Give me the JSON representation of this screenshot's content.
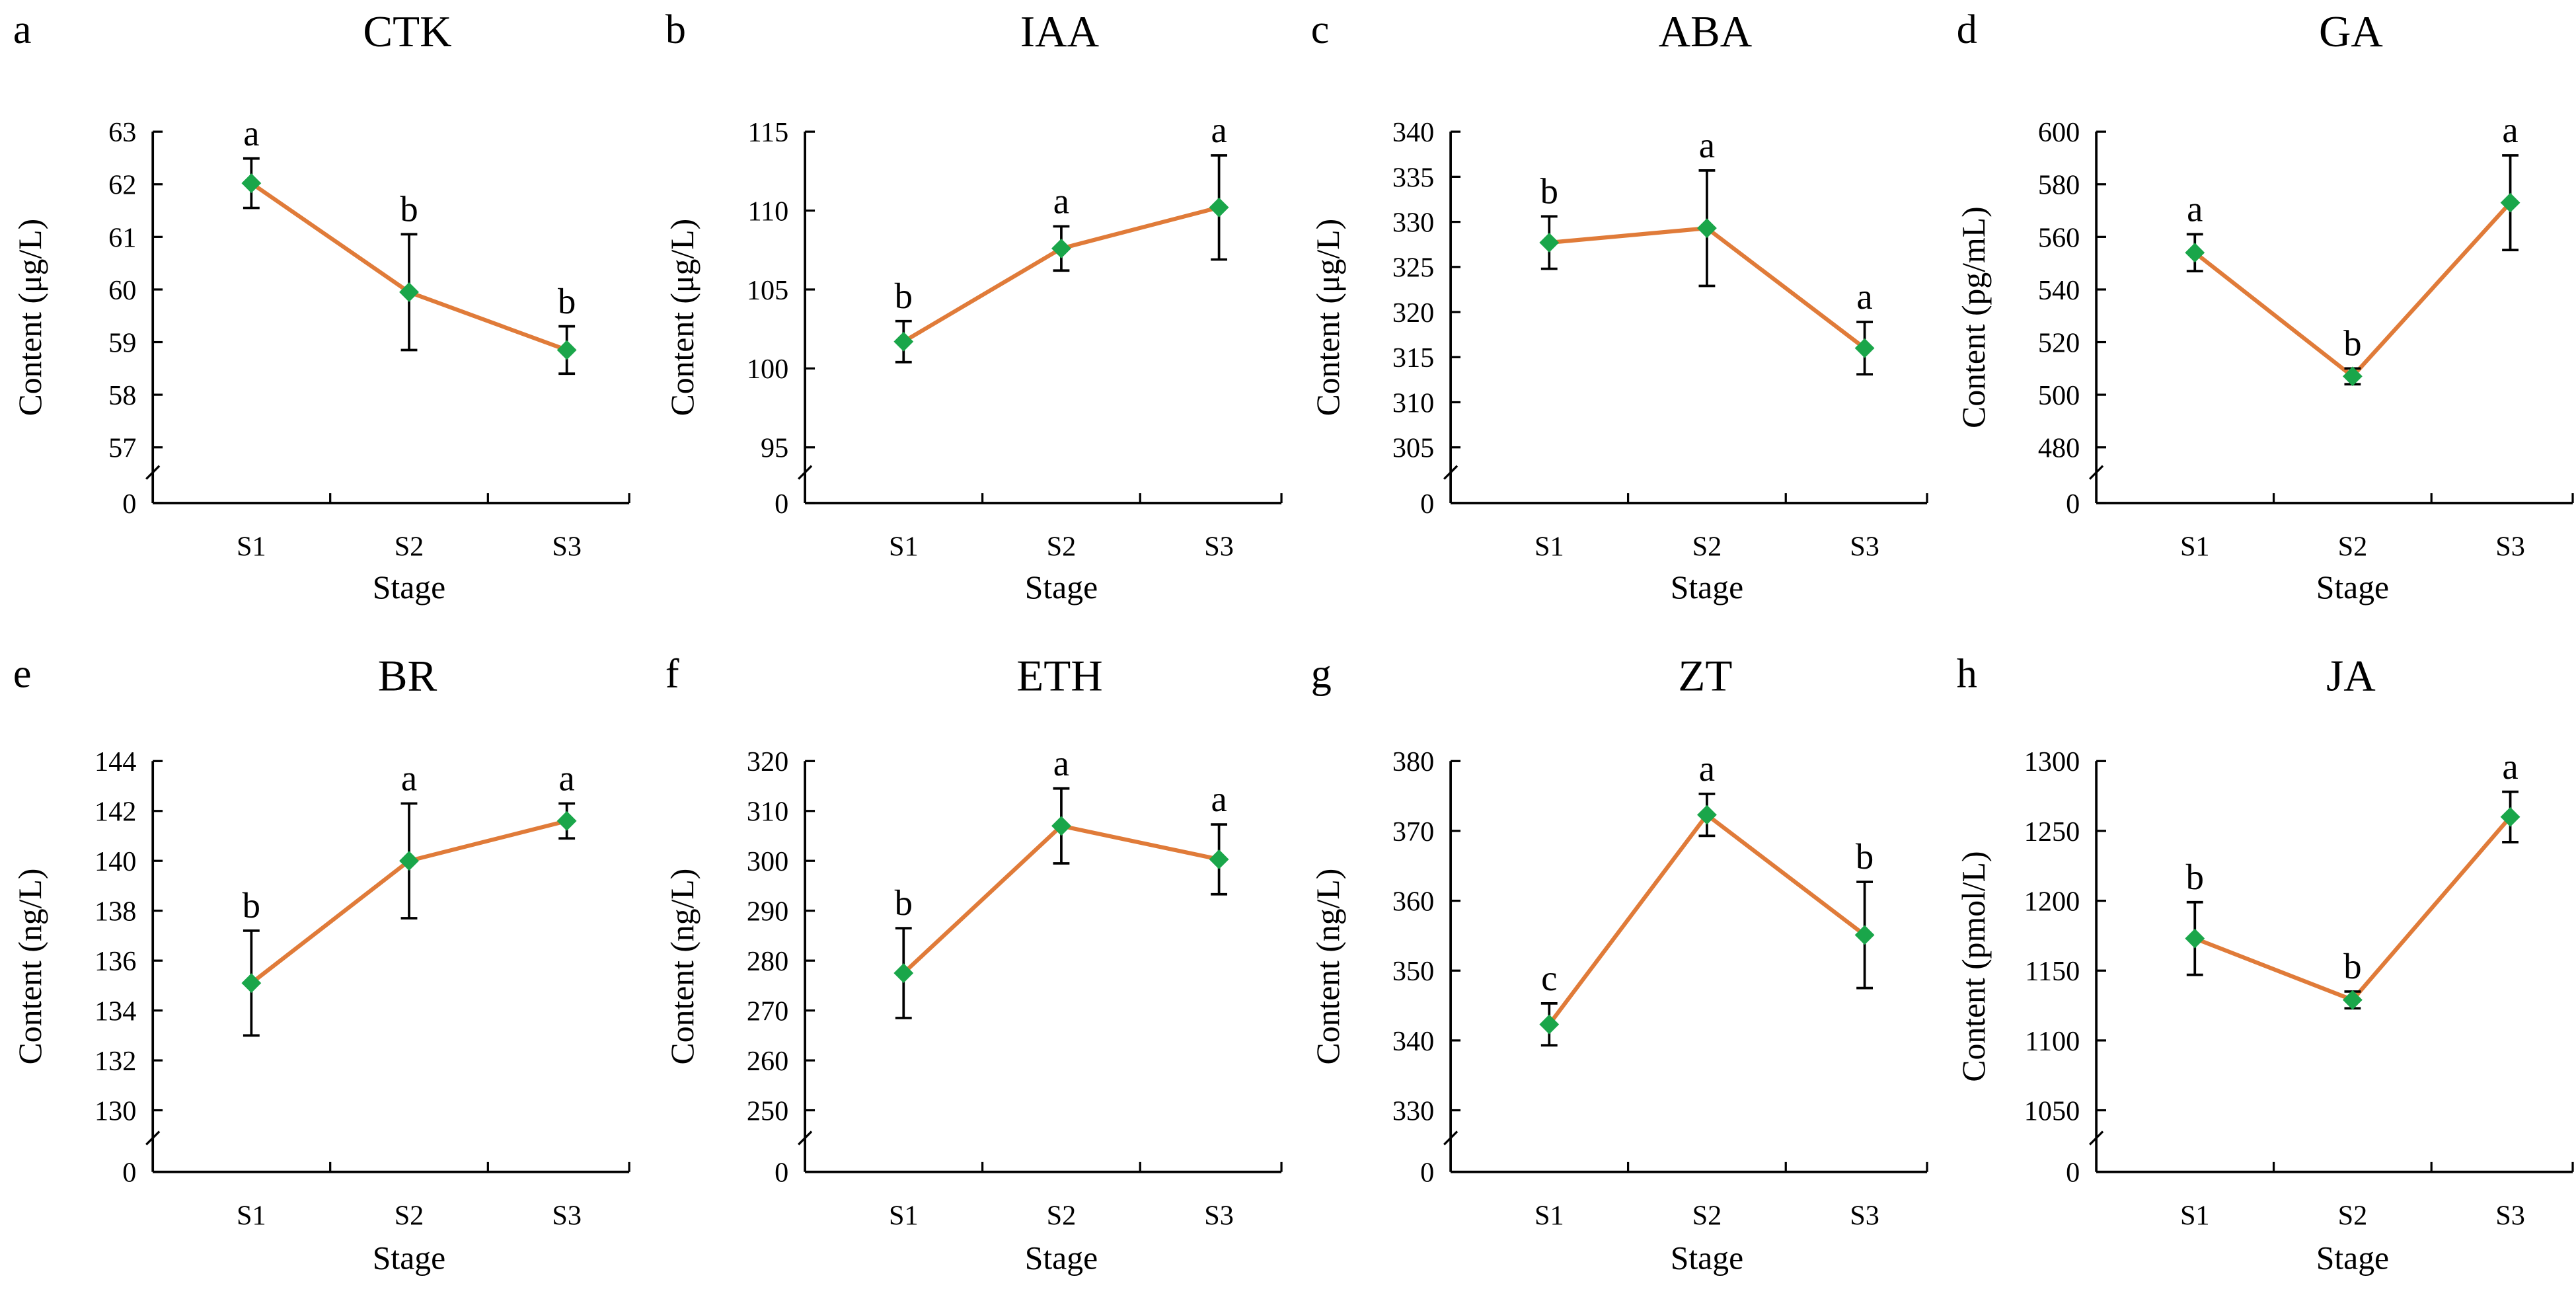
{
  "chart_data": [
    {
      "panel": "a",
      "type": "line",
      "title": "CTK",
      "xlabel": "Stage",
      "ylabel": "Content (μg/L)",
      "categories": [
        "S1",
        "S2",
        "S3"
      ],
      "values": [
        62.02,
        59.95,
        58.85
      ],
      "errors": [
        0.47,
        1.1,
        0.45
      ],
      "significance": [
        "a",
        "b",
        "b"
      ],
      "yticks": [
        "0",
        "57",
        "58",
        "59",
        "60",
        "61",
        "62",
        "63"
      ],
      "ylim": [
        57,
        63
      ],
      "axis_break": true
    },
    {
      "panel": "b",
      "type": "line",
      "title": "IAA",
      "xlabel": "Stage",
      "ylabel": "Content (μg/L)",
      "categories": [
        "S1",
        "S2",
        "S3"
      ],
      "values": [
        101.7,
        107.6,
        110.2
      ],
      "errors": [
        1.3,
        1.4,
        3.3
      ],
      "significance": [
        "b",
        "a",
        "a"
      ],
      "yticks": [
        "0",
        "95",
        "100",
        "105",
        "110",
        "115"
      ],
      "ylim": [
        95,
        115
      ],
      "axis_break": true
    },
    {
      "panel": "c",
      "type": "line",
      "title": "ABA",
      "xlabel": "Stage",
      "ylabel": "Content (μg/L)",
      "categories": [
        "S1",
        "S2",
        "S3"
      ],
      "values": [
        327.7,
        329.3,
        316.0
      ],
      "errors": [
        2.9,
        6.4,
        2.9
      ],
      "significance": [
        "b",
        "a",
        "a"
      ],
      "yticks": [
        "0",
        "305",
        "310",
        "315",
        "320",
        "325",
        "330",
        "335",
        "340"
      ],
      "ylim": [
        305,
        340
      ],
      "axis_break": true
    },
    {
      "panel": "d",
      "type": "line",
      "title": "GA",
      "xlabel": "Stage",
      "ylabel": "Content (pg/mL)",
      "categories": [
        "S1",
        "S2",
        "S3"
      ],
      "values": [
        554,
        507,
        573
      ],
      "errors": [
        7,
        3,
        18
      ],
      "significance": [
        "a",
        "b",
        "a"
      ],
      "yticks": [
        "0",
        "480",
        "500",
        "520",
        "540",
        "560",
        "580",
        "600"
      ],
      "ylim": [
        480,
        600
      ],
      "axis_break": true
    },
    {
      "panel": "e",
      "type": "line",
      "title": "BR",
      "xlabel": "Stage",
      "ylabel": "Content (ng/L)",
      "categories": [
        "S1",
        "S2",
        "S3"
      ],
      "values": [
        135.1,
        140.0,
        141.6
      ],
      "errors": [
        2.1,
        2.3,
        0.7
      ],
      "significance": [
        "b",
        "a",
        "a"
      ],
      "yticks": [
        "0",
        "130",
        "132",
        "134",
        "136",
        "138",
        "140",
        "142",
        "144"
      ],
      "ylim": [
        130,
        144
      ],
      "axis_break": true
    },
    {
      "panel": "f",
      "type": "line",
      "title": "ETH",
      "xlabel": "Stage",
      "ylabel": "Content (ng/L)",
      "categories": [
        "S1",
        "S2",
        "S3"
      ],
      "values": [
        277.5,
        307.0,
        300.3
      ],
      "errors": [
        9,
        7.5,
        7
      ],
      "significance": [
        "b",
        "a",
        "a"
      ],
      "yticks": [
        "0",
        "250",
        "260",
        "270",
        "280",
        "290",
        "300",
        "310",
        "320"
      ],
      "ylim": [
        250,
        320
      ],
      "axis_break": true
    },
    {
      "panel": "g",
      "type": "line",
      "title": "ZT",
      "xlabel": "Stage",
      "ylabel": "Content (ng/L)",
      "categories": [
        "S1",
        "S2",
        "S3"
      ],
      "values": [
        342.3,
        372.3,
        355.1
      ],
      "errors": [
        3,
        3,
        7.6
      ],
      "significance": [
        "c",
        "a",
        "b"
      ],
      "yticks": [
        "0",
        "330",
        "340",
        "350",
        "360",
        "370",
        "380"
      ],
      "ylim": [
        330,
        380
      ],
      "axis_break": true
    },
    {
      "panel": "h",
      "type": "line",
      "title": "JA",
      "xlabel": "Stage",
      "ylabel": "Content (pmol/L)",
      "categories": [
        "S1",
        "S2",
        "S3"
      ],
      "values": [
        1173,
        1129,
        1260
      ],
      "errors": [
        26,
        6,
        18
      ],
      "significance": [
        "b",
        "b",
        "a"
      ],
      "yticks": [
        "0",
        "1050",
        "1100",
        "1150",
        "1200",
        "1250",
        "1300"
      ],
      "ylim": [
        1050,
        1300
      ],
      "axis_break": true
    }
  ],
  "colors": {
    "line": "#E07B39",
    "marker": "#1AA64A",
    "axis": "#000000"
  }
}
